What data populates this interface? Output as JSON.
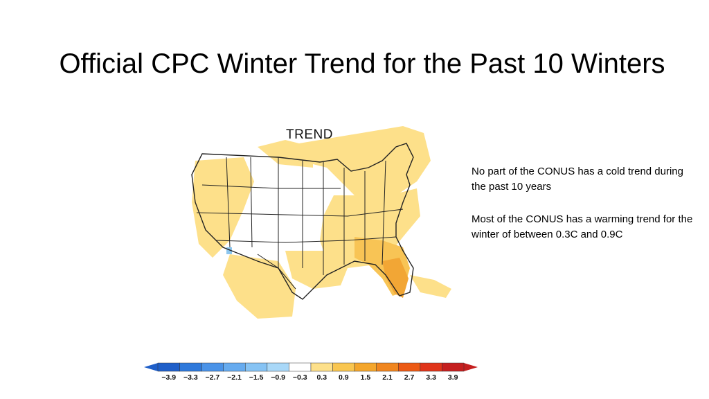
{
  "title": "Official CPC Winter Trend for the Past 10 Winters",
  "map": {
    "label": "TREND",
    "colors": {
      "background_land": "#ffffff",
      "light_warm": "#fde08a",
      "medium_warm": "#f8c455",
      "strong_warm": "#f2a635",
      "light_cool": "#8cc6ef",
      "borders": "#222222"
    }
  },
  "notes": {
    "line1": "No part of the CONUS has a cold trend during the past 10 years",
    "line2": "Most of the CONUS has a warming trend for the winter  of between 0.3C and 0.9C"
  },
  "colorbar": {
    "colors": [
      "#1f5fc9",
      "#2f79db",
      "#4a93e8",
      "#66abef",
      "#86c3f4",
      "#a9d8f8",
      "#ffffff",
      "#fde08a",
      "#f9c650",
      "#f4a62c",
      "#f0861f",
      "#ec5a14",
      "#e0341a",
      "#c51f1f"
    ],
    "tick_labels": [
      "−3.9",
      "−3.3",
      "−2.7",
      "−2.1",
      "−1.5",
      "−0.9",
      "−0.3",
      "0.3",
      "0.9",
      "1.5",
      "2.1",
      "2.7",
      "3.3",
      "3.9"
    ],
    "arrow_left_color": "#1f5fc9",
    "arrow_right_color": "#c51f1f"
  }
}
